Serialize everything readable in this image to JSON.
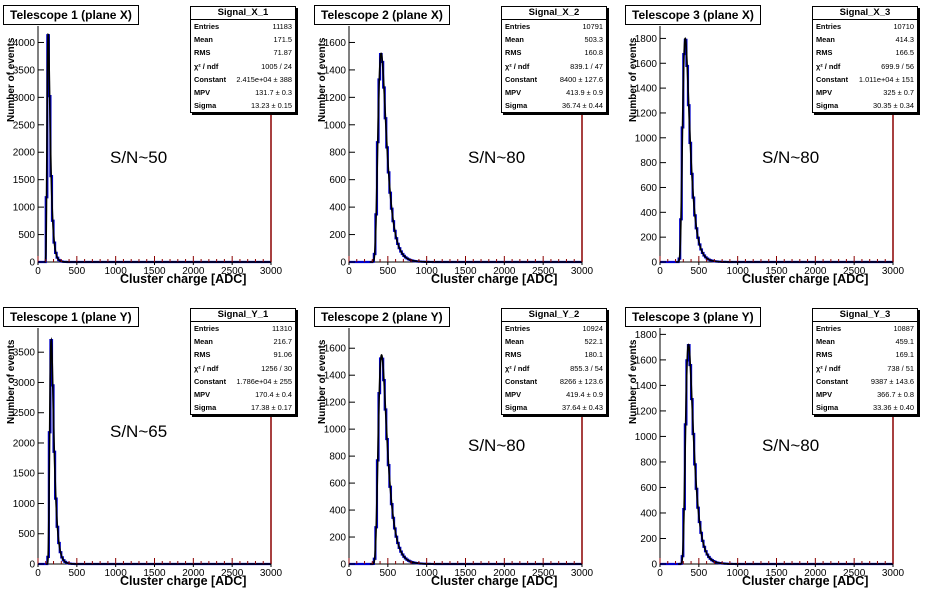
{
  "colors": {
    "histogram": "#0000cc",
    "fit": "#000000",
    "frame_right": "#8b0000",
    "axis": "#000000"
  },
  "panels": [
    {
      "title": "Telescope 1 (plane X)",
      "stats_name": "Signal_X_1",
      "stats": [
        [
          "Entries",
          "11183"
        ],
        [
          "Mean",
          "171.5"
        ],
        [
          "RMS",
          "71.87"
        ],
        [
          "χ² / ndf",
          "1005 / 24"
        ],
        [
          "Constant",
          "2.415e+04 ± 388"
        ],
        [
          "MPV",
          "131.7 ± 0.3"
        ],
        [
          "Sigma",
          "13.23 ± 0.15"
        ]
      ],
      "sn": "S/N~50",
      "xlabel": "Cluster charge [ADC]",
      "ylabel": "Number of events"
    },
    {
      "title": "Telescope 2 (plane X)",
      "stats_name": "Signal_X_2",
      "stats": [
        [
          "Entries",
          "10791"
        ],
        [
          "Mean",
          "503.3"
        ],
        [
          "RMS",
          "160.8"
        ],
        [
          "χ² / ndf",
          "839.1 / 47"
        ],
        [
          "Constant",
          "8400 ± 127.6"
        ],
        [
          "MPV",
          "413.9 ± 0.9"
        ],
        [
          "Sigma",
          "36.74 ± 0.44"
        ]
      ],
      "sn": "S/N~80",
      "xlabel": "Cluster charge [ADC]",
      "ylabel": "Number of events"
    },
    {
      "title": "Telescope 3 (plane X)",
      "stats_name": "Signal_X_3",
      "stats": [
        [
          "Entries",
          "10710"
        ],
        [
          "Mean",
          "414.3"
        ],
        [
          "RMS",
          "166.5"
        ],
        [
          "χ² / ndf",
          "699.9 / 56"
        ],
        [
          "Constant",
          "1.011e+04 ± 151"
        ],
        [
          "MPV",
          "325 ± 0.7"
        ],
        [
          "Sigma",
          "30.35 ± 0.34"
        ]
      ],
      "sn": "S/N~80",
      "xlabel": "Cluster charge [ADC]",
      "ylabel": "Number of events"
    },
    {
      "title": "Telescope 1 (plane Y)",
      "stats_name": "Signal_Y_1",
      "stats": [
        [
          "Entries",
          "11310"
        ],
        [
          "Mean",
          "216.7"
        ],
        [
          "RMS",
          "91.06"
        ],
        [
          "χ² / ndf",
          "1256 / 30"
        ],
        [
          "Constant",
          "1.786e+04 ± 255"
        ],
        [
          "MPV",
          "170.4 ± 0.4"
        ],
        [
          "Sigma",
          "17.38 ± 0.17"
        ]
      ],
      "sn": "S/N~65",
      "xlabel": "Cluster charge [ADC]",
      "ylabel": "Number of events"
    },
    {
      "title": "Telescope 2 (plane Y)",
      "stats_name": "Signal_Y_2",
      "stats": [
        [
          "Entries",
          "10924"
        ],
        [
          "Mean",
          "522.1"
        ],
        [
          "RMS",
          "180.1"
        ],
        [
          "χ² / ndf",
          "855.3 / 54"
        ],
        [
          "Constant",
          "8266 ± 123.6"
        ],
        [
          "MPV",
          "419.4 ± 0.9"
        ],
        [
          "Sigma",
          "37.64 ± 0.43"
        ]
      ],
      "sn": "S/N~80",
      "xlabel": "Cluster charge [ADC]",
      "ylabel": "Number of events"
    },
    {
      "title": "Telescope 3 (plane Y)",
      "stats_name": "Signal_Y_3",
      "stats": [
        [
          "Entries",
          "10887"
        ],
        [
          "Mean",
          "459.1"
        ],
        [
          "RMS",
          "169.1"
        ],
        [
          "χ² / ndf",
          "738 / 51"
        ],
        [
          "Constant",
          "9387 ± 143.6"
        ],
        [
          "MPV",
          "366.7 ± 0.8"
        ],
        [
          "Sigma",
          "33.36 ± 0.40"
        ]
      ],
      "sn": "S/N~80",
      "xlabel": "Cluster charge [ADC]",
      "ylabel": "Number of events"
    }
  ],
  "chart_data": [
    {
      "type": "bar",
      "title": "Telescope 1 (plane X)",
      "xlabel": "Cluster charge [ADC]",
      "ylabel": "Number of events",
      "xlim": [
        0,
        3000
      ],
      "ylim": [
        0,
        4300
      ],
      "xticks": [
        0,
        500,
        1000,
        1500,
        2000,
        2500,
        3000
      ],
      "yticks": [
        0,
        500,
        1000,
        1500,
        2000,
        2500,
        3000,
        3500,
        4000
      ],
      "peak": {
        "x": 131.7,
        "y": 4150
      },
      "series": [
        {
          "name": "Signal_X_1",
          "shape": "landau",
          "mpv": 131.7,
          "sigma": 13.23,
          "peak_count": 4150
        }
      ]
    },
    {
      "type": "bar",
      "title": "Telescope 2 (plane X)",
      "xlabel": "Cluster charge [ADC]",
      "ylabel": "Number of events",
      "xlim": [
        0,
        3000
      ],
      "ylim": [
        0,
        1720
      ],
      "xticks": [
        0,
        500,
        1000,
        1500,
        2000,
        2500,
        3000
      ],
      "yticks": [
        0,
        200,
        400,
        600,
        800,
        1000,
        1200,
        1400,
        1600
      ],
      "peak": {
        "x": 413.9,
        "y": 1520
      },
      "series": [
        {
          "name": "Signal_X_2",
          "shape": "landau",
          "mpv": 413.9,
          "sigma": 36.74,
          "peak_count": 1520
        }
      ]
    },
    {
      "type": "bar",
      "title": "Telescope 3 (plane X)",
      "xlabel": "Cluster charge [ADC]",
      "ylabel": "Number of events",
      "xlim": [
        0,
        3000
      ],
      "ylim": [
        0,
        1900
      ],
      "xticks": [
        0,
        500,
        1000,
        1500,
        2000,
        2500,
        3000
      ],
      "yticks": [
        0,
        200,
        400,
        600,
        800,
        1000,
        1200,
        1400,
        1600,
        1800
      ],
      "peak": {
        "x": 325,
        "y": 1800
      },
      "series": [
        {
          "name": "Signal_X_3",
          "shape": "landau",
          "mpv": 325,
          "sigma": 30.35,
          "peak_count": 1800
        }
      ]
    },
    {
      "type": "bar",
      "title": "Telescope 1 (plane Y)",
      "xlabel": "Cluster charge [ADC]",
      "ylabel": "Number of events",
      "xlim": [
        0,
        3000
      ],
      "ylim": [
        0,
        3900
      ],
      "xticks": [
        0,
        500,
        1000,
        1500,
        2000,
        2500,
        3000
      ],
      "yticks": [
        0,
        500,
        1000,
        1500,
        2000,
        2500,
        3000,
        3500
      ],
      "peak": {
        "x": 170.4,
        "y": 3700
      },
      "series": [
        {
          "name": "Signal_Y_1",
          "shape": "landau",
          "mpv": 170.4,
          "sigma": 17.38,
          "peak_count": 3700
        }
      ]
    },
    {
      "type": "bar",
      "title": "Telescope 2 (plane Y)",
      "xlabel": "Cluster charge [ADC]",
      "ylabel": "Number of events",
      "xlim": [
        0,
        3000
      ],
      "ylim": [
        0,
        1750
      ],
      "xticks": [
        0,
        500,
        1000,
        1500,
        2000,
        2500,
        3000
      ],
      "yticks": [
        0,
        200,
        400,
        600,
        800,
        1000,
        1200,
        1400,
        1600
      ],
      "peak": {
        "x": 419.4,
        "y": 1550
      },
      "series": [
        {
          "name": "Signal_Y_2",
          "shape": "landau",
          "mpv": 419.4,
          "sigma": 37.64,
          "peak_count": 1550
        }
      ]
    },
    {
      "type": "bar",
      "title": "Telescope 3 (plane Y)",
      "xlabel": "Cluster charge [ADC]",
      "ylabel": "Number of events",
      "xlim": [
        0,
        3000
      ],
      "ylim": [
        0,
        1850
      ],
      "xticks": [
        0,
        500,
        1000,
        1500,
        2000,
        2500,
        3000
      ],
      "yticks": [
        0,
        200,
        400,
        600,
        800,
        1000,
        1200,
        1400,
        1600,
        1800
      ],
      "peak": {
        "x": 366.7,
        "y": 1720
      },
      "series": [
        {
          "name": "Signal_Y_3",
          "shape": "landau",
          "mpv": 366.7,
          "sigma": 33.36,
          "peak_count": 1720
        }
      ]
    }
  ]
}
